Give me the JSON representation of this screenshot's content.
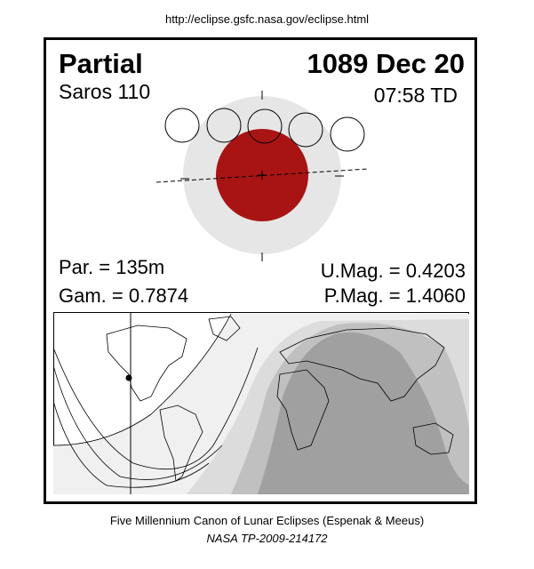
{
  "source_url": "http://eclipse.gsfc.nasa.gov/eclipse.html",
  "eclipse": {
    "type": "Partial",
    "date": "1089 Dec 20",
    "saros": "Saros 110",
    "time": "07:58 TD",
    "par": "Par. = 135m",
    "gam": "Gam. = 0.7874",
    "umag": "U.Mag. = 0.4203",
    "pmag": "P.Mag. = 1.4060"
  },
  "colors": {
    "umbra": "#a81414",
    "penumbra": "#e6e6e6",
    "map_zone_dark": "#a0a0a0",
    "map_zone_mid": "#c0c0c0",
    "map_zone_light": "#dcdcdc",
    "map_zone_faint": "#f0f0f0"
  },
  "footer": {
    "line1": "Five Millennium Canon of Lunar Eclipses (Espenak & Meeus)",
    "line2": "NASA TP-2009-214172"
  }
}
